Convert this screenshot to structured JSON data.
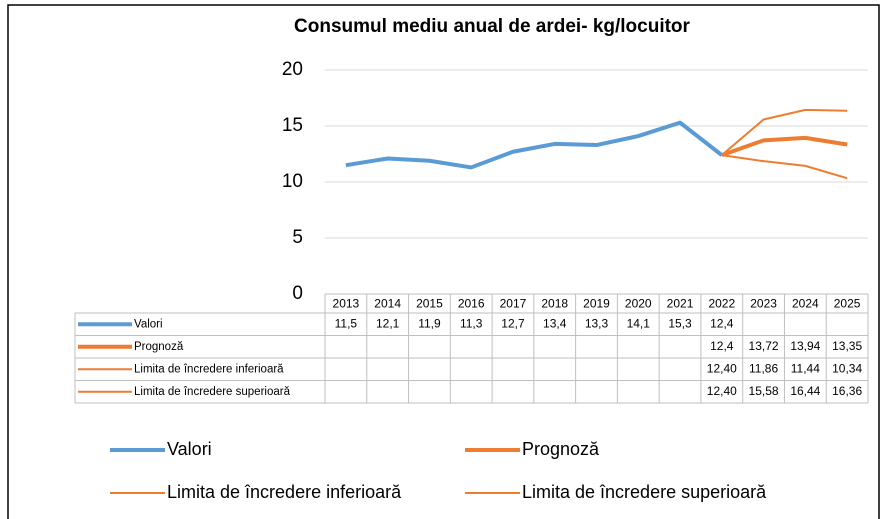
{
  "chart_data": {
    "type": "line",
    "title": "Consumul mediu anual de ardei- kg/locuitor",
    "categories": [
      "2013",
      "2014",
      "2015",
      "2016",
      "2017",
      "2018",
      "2019",
      "2020",
      "2021",
      "2022",
      "2023",
      "2024",
      "2025"
    ],
    "series": [
      {
        "name": "Valori",
        "color": "#5b9bd5",
        "width": 4,
        "values": [
          11.5,
          12.1,
          11.9,
          11.3,
          12.7,
          13.4,
          13.3,
          14.1,
          15.3,
          12.4,
          null,
          null,
          null
        ],
        "value_labels": [
          "11,5",
          "12,1",
          "11,9",
          "11,3",
          "12,7",
          "13,4",
          "13,3",
          "14,1",
          "15,3",
          "12,4",
          null,
          null,
          null
        ]
      },
      {
        "name": "Prognoză",
        "color": "#ed7d31",
        "width": 4,
        "values": [
          null,
          null,
          null,
          null,
          null,
          null,
          null,
          null,
          null,
          12.4,
          13.72,
          13.94,
          13.35
        ],
        "value_labels": [
          null,
          null,
          null,
          null,
          null,
          null,
          null,
          null,
          null,
          "12,4",
          "13,72",
          "13,94",
          "13,35"
        ]
      },
      {
        "name": "Limita de încredere inferioară",
        "color": "#ed7d31",
        "width": 2,
        "values": [
          null,
          null,
          null,
          null,
          null,
          null,
          null,
          null,
          null,
          12.4,
          11.86,
          11.44,
          10.34
        ],
        "value_labels": [
          null,
          null,
          null,
          null,
          null,
          null,
          null,
          null,
          null,
          "12,40",
          "11,86",
          "11,44",
          "10,34"
        ]
      },
      {
        "name": "Limita de încredere superioară",
        "color": "#ed7d31",
        "width": 2,
        "values": [
          null,
          null,
          null,
          null,
          null,
          null,
          null,
          null,
          null,
          12.4,
          15.58,
          16.44,
          16.36
        ],
        "value_labels": [
          null,
          null,
          null,
          null,
          null,
          null,
          null,
          null,
          null,
          "12,40",
          "15,58",
          "16,44",
          "16,36"
        ]
      }
    ],
    "ylim": [
      0,
      20
    ],
    "yticks": [
      0,
      5,
      10,
      15,
      20
    ],
    "grid": true
  }
}
